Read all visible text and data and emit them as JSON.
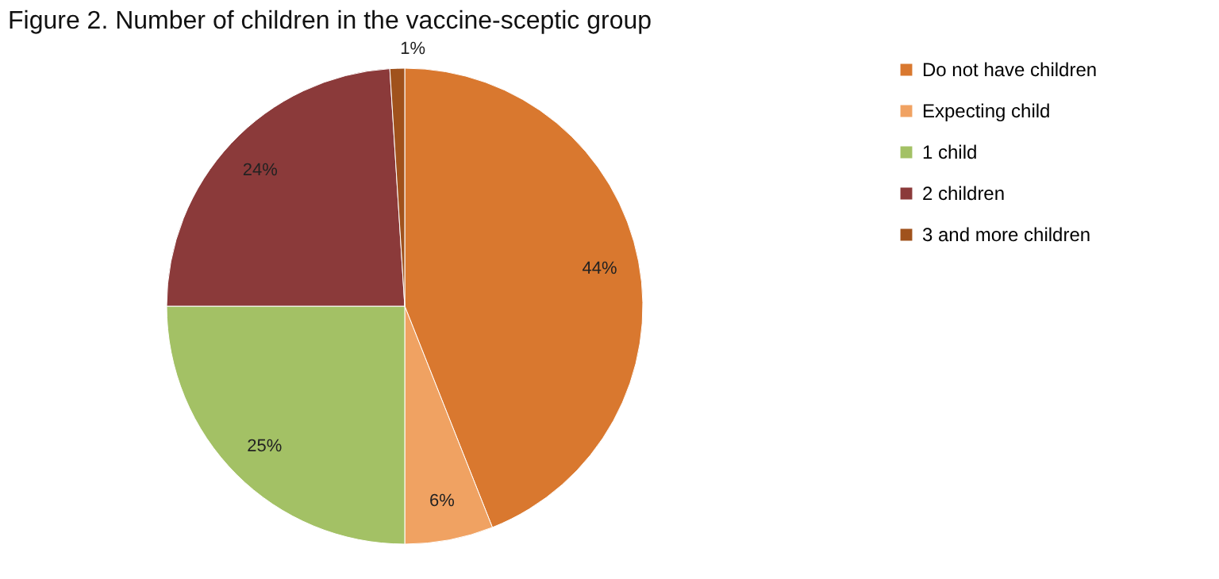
{
  "chart_data": {
    "type": "pie",
    "title": "Figure 2. Number of children in the vaccine-sceptic group",
    "categories": [
      "Do not have children",
      "Expecting child",
      "1 child",
      "2 children",
      "3 and more children"
    ],
    "values": [
      44,
      6,
      25,
      24,
      1
    ],
    "value_labels": [
      "44%",
      "6%",
      "25%",
      "24%",
      "1%"
    ],
    "colors": [
      "#d9782f",
      "#f0a262",
      "#a3c165",
      "#8b3a3a",
      "#a0521c"
    ],
    "legend": "right"
  }
}
